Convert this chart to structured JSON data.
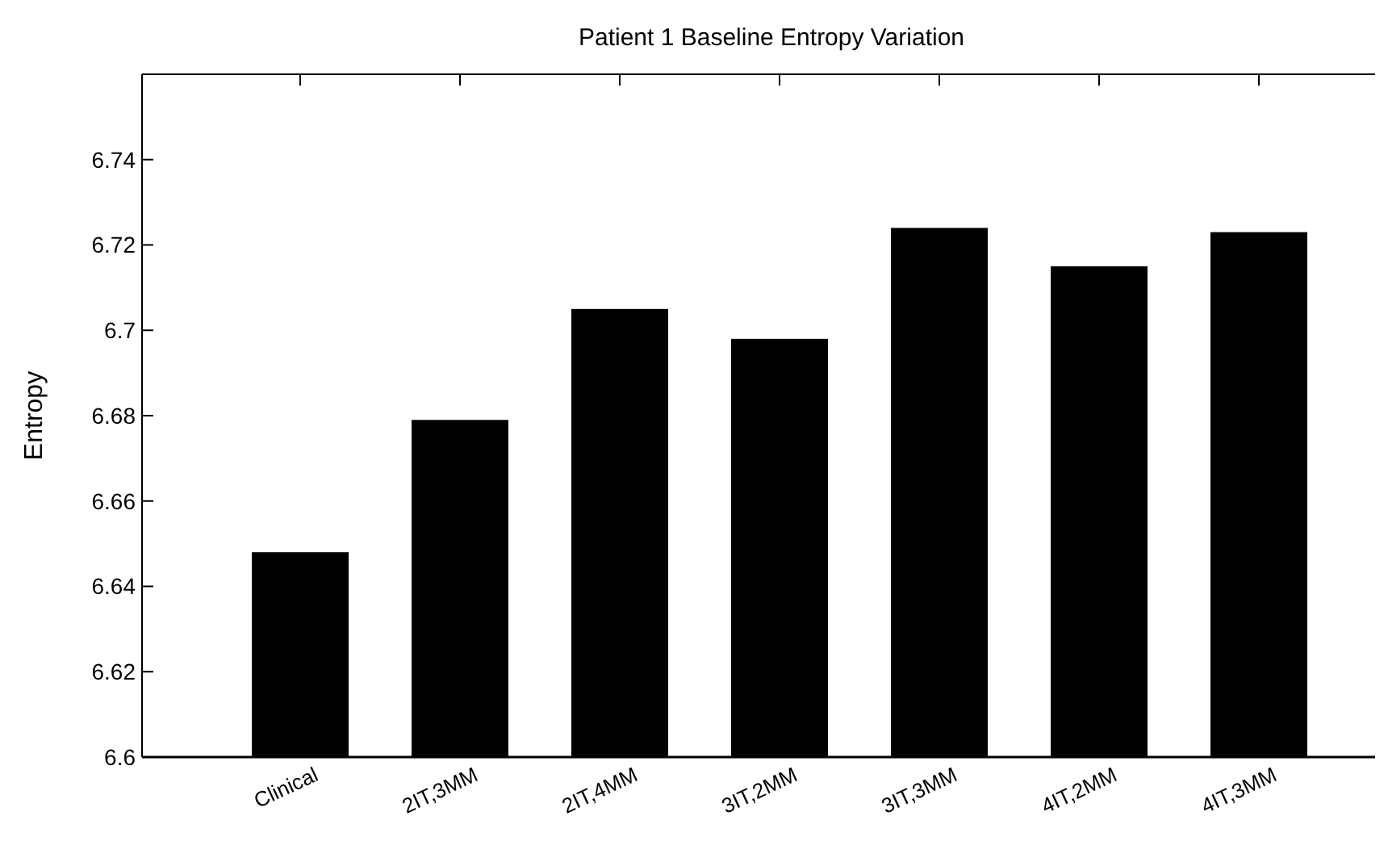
{
  "chart_data": {
    "type": "bar",
    "title": "Patient 1 Baseline Entropy Variation",
    "ylabel": "Entropy",
    "categories": [
      "Clinical",
      "2IT,3MM",
      "2IT,4MM",
      "3IT,2MM",
      "3IT,3MM",
      "4IT,2MM",
      "4IT,3MM"
    ],
    "values": [
      6.648,
      6.679,
      6.705,
      6.698,
      6.724,
      6.715,
      6.723
    ],
    "color": "#000000",
    "ylim": [
      6.6,
      6.76
    ],
    "yticks": [
      6.6,
      6.62,
      6.64,
      6.66,
      6.68,
      6.7,
      6.72,
      6.74
    ],
    "grid": false
  }
}
